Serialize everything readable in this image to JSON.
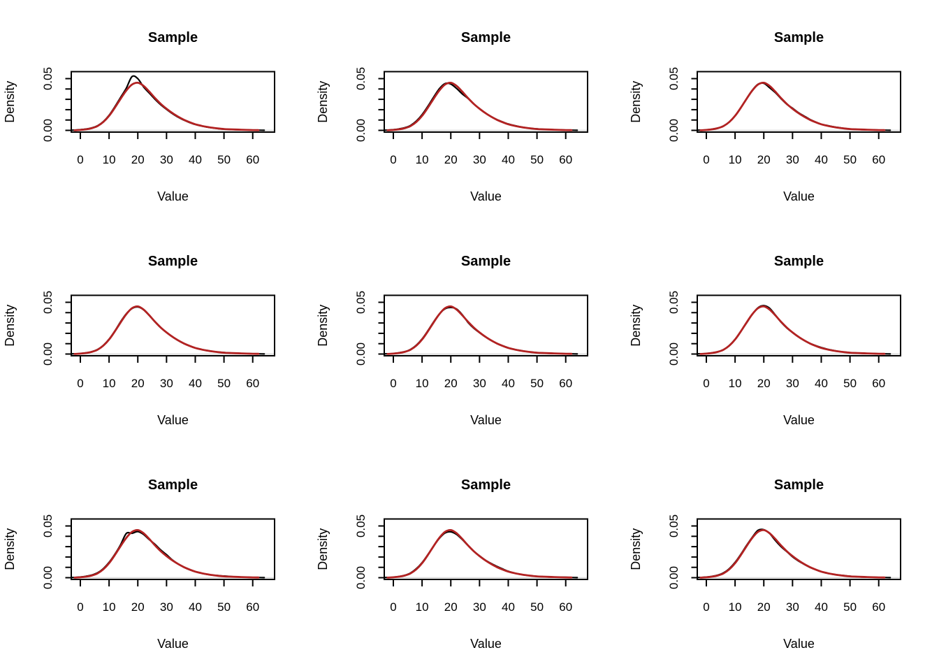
{
  "figure": {
    "background": "#FFFFFF",
    "grid_rows": 3,
    "grid_cols": 3,
    "panel_count": 9
  },
  "colors": {
    "sample_density": "#000000",
    "fitted_density": "#B22222",
    "zero_line": "#D6D6D6",
    "axis": "#000000"
  },
  "chart_data": {
    "type": "line",
    "layout": "3x3 grid of density plots, no legend, no grid lines, boxed plot region",
    "panel_title": "Sample",
    "xlabel": "Value",
    "ylabel": "Density",
    "x_ticks": [
      0,
      10,
      20,
      30,
      40,
      50,
      60
    ],
    "y_ticks": [
      0.0,
      0.01,
      0.02,
      0.03,
      0.04,
      0.05
    ],
    "y_tick_labels_shown": [
      "0.00",
      "0.05"
    ],
    "xlim": [
      -3.1,
      67.7
    ],
    "ylim": [
      -0.0017,
      0.0568
    ],
    "series_names": [
      "sample-kde-black",
      "fitted-curve-red"
    ],
    "x_grid": [
      -4,
      -2,
      0,
      2,
      4,
      6,
      8,
      10,
      12,
      14,
      16,
      18,
      20,
      22,
      24,
      26,
      28,
      30,
      32,
      34,
      36,
      38,
      40,
      42,
      44,
      46,
      48,
      50,
      52,
      54,
      56,
      58,
      60,
      62,
      64
    ],
    "panels": [
      {
        "kde": [
          0.0001,
          0.0003,
          0.0007,
          0.0013,
          0.0024,
          0.0045,
          0.0085,
          0.0146,
          0.0228,
          0.0318,
          0.0408,
          0.052,
          0.05,
          0.042,
          0.036,
          0.03,
          0.0247,
          0.0203,
          0.0162,
          0.0128,
          0.0099,
          0.0076,
          0.0057,
          0.0043,
          0.0032,
          0.0024,
          0.0017,
          0.0012,
          0.0009,
          0.0007,
          0.0005,
          0.0004,
          0.0003,
          0.0002,
          0.0001
        ],
        "fitted": [
          null,
          0.0001,
          0.0004,
          0.001,
          0.0021,
          0.0042,
          0.0081,
          0.014,
          0.0218,
          0.0305,
          0.0385,
          0.0443,
          0.046,
          0.043,
          0.0374,
          0.0312,
          0.0256,
          0.0209,
          0.0168,
          0.0133,
          0.0103,
          0.0079,
          0.0059,
          0.0045,
          0.0034,
          0.0025,
          0.0018,
          0.0013,
          0.001,
          0.0008,
          0.0006,
          0.0004,
          0.0003,
          0.0002,
          null
        ]
      },
      {
        "kde": [
          0.0001,
          0.0003,
          0.0007,
          0.0014,
          0.0026,
          0.0048,
          0.009,
          0.0152,
          0.0232,
          0.032,
          0.0402,
          0.0452,
          0.0448,
          0.0405,
          0.0352,
          0.0308,
          0.0255,
          0.021,
          0.0169,
          0.0134,
          0.0105,
          0.0082,
          0.0062,
          0.0047,
          0.0035,
          0.0026,
          0.0019,
          0.0014,
          0.001,
          0.0008,
          0.0006,
          0.0004,
          0.0003,
          0.0002,
          0.0001
        ],
        "fitted": [
          null,
          0.0001,
          0.0004,
          0.001,
          0.0021,
          0.0042,
          0.0081,
          0.014,
          0.0218,
          0.0305,
          0.0385,
          0.0443,
          0.046,
          0.043,
          0.0374,
          0.0312,
          0.0256,
          0.0209,
          0.0168,
          0.0133,
          0.0103,
          0.0079,
          0.0059,
          0.0045,
          0.0034,
          0.0025,
          0.0018,
          0.0013,
          0.001,
          0.0008,
          0.0006,
          0.0004,
          0.0003,
          0.0002,
          null
        ]
      },
      {
        "kde": [
          0.0001,
          0.0002,
          0.0005,
          0.0011,
          0.0022,
          0.0043,
          0.0082,
          0.0141,
          0.0219,
          0.0306,
          0.0388,
          0.0446,
          0.0455,
          0.0412,
          0.0365,
          0.0306,
          0.0253,
          0.0214,
          0.0172,
          0.0139,
          0.0107,
          0.0081,
          0.0059,
          0.0047,
          0.0036,
          0.0027,
          0.0019,
          0.0013,
          0.001,
          0.0007,
          0.0005,
          0.0004,
          0.0003,
          0.0002,
          0.0001
        ],
        "fitted": [
          null,
          0.0001,
          0.0004,
          0.001,
          0.0021,
          0.0042,
          0.0081,
          0.014,
          0.0218,
          0.0305,
          0.0385,
          0.0443,
          0.046,
          0.043,
          0.0374,
          0.0312,
          0.0256,
          0.0209,
          0.0168,
          0.0133,
          0.0103,
          0.0079,
          0.0059,
          0.0045,
          0.0034,
          0.0025,
          0.0018,
          0.0013,
          0.001,
          0.0008,
          0.0006,
          0.0004,
          0.0003,
          0.0002,
          null
        ]
      },
      {
        "kde": [
          0.0001,
          0.0002,
          0.0005,
          0.0011,
          0.0022,
          0.0044,
          0.0084,
          0.0144,
          0.0222,
          0.0312,
          0.039,
          0.044,
          0.0455,
          0.0428,
          0.0372,
          0.031,
          0.0254,
          0.0208,
          0.0167,
          0.0132,
          0.0102,
          0.0078,
          0.0059,
          0.0045,
          0.0035,
          0.0026,
          0.0019,
          0.0014,
          0.001,
          0.0008,
          0.0006,
          0.0004,
          0.0003,
          0.0002,
          0.0001
        ],
        "fitted": [
          null,
          0.0001,
          0.0004,
          0.001,
          0.0021,
          0.0042,
          0.0081,
          0.014,
          0.0218,
          0.0305,
          0.0385,
          0.0443,
          0.046,
          0.043,
          0.0374,
          0.0312,
          0.0256,
          0.0209,
          0.0168,
          0.0133,
          0.0103,
          0.0079,
          0.0059,
          0.0045,
          0.0034,
          0.0025,
          0.0018,
          0.0013,
          0.001,
          0.0008,
          0.0006,
          0.0004,
          0.0003,
          0.0002,
          null
        ]
      },
      {
        "kde": [
          0.0001,
          0.0002,
          0.0005,
          0.0012,
          0.0023,
          0.0045,
          0.0086,
          0.0146,
          0.0224,
          0.031,
          0.0386,
          0.0437,
          0.045,
          0.0435,
          0.038,
          0.0305,
          0.0249,
          0.0206,
          0.0166,
          0.0131,
          0.0103,
          0.008,
          0.0061,
          0.0046,
          0.0035,
          0.0026,
          0.0019,
          0.0013,
          0.001,
          0.0007,
          0.0005,
          0.0004,
          0.0003,
          0.0002,
          0.0001
        ],
        "fitted": [
          null,
          0.0001,
          0.0004,
          0.001,
          0.0021,
          0.0042,
          0.0081,
          0.014,
          0.0218,
          0.0305,
          0.0385,
          0.0443,
          0.046,
          0.043,
          0.0374,
          0.0312,
          0.0256,
          0.0209,
          0.0168,
          0.0133,
          0.0103,
          0.0079,
          0.0059,
          0.0045,
          0.0034,
          0.0025,
          0.0018,
          0.0013,
          0.001,
          0.0008,
          0.0006,
          0.0004,
          0.0003,
          0.0002,
          null
        ]
      },
      {
        "kde": [
          0.0001,
          0.0002,
          0.0005,
          0.0011,
          0.0022,
          0.0043,
          0.0083,
          0.0142,
          0.0219,
          0.0301,
          0.0384,
          0.0448,
          0.0468,
          0.0443,
          0.0378,
          0.0308,
          0.0252,
          0.0207,
          0.0166,
          0.0132,
          0.0103,
          0.0082,
          0.0063,
          0.0048,
          0.0036,
          0.0026,
          0.0019,
          0.0013,
          0.001,
          0.0007,
          0.0005,
          0.0004,
          0.0003,
          0.0002,
          0.0001
        ],
        "fitted": [
          null,
          0.0001,
          0.0004,
          0.001,
          0.0021,
          0.0042,
          0.0081,
          0.014,
          0.0218,
          0.0305,
          0.0385,
          0.0443,
          0.046,
          0.043,
          0.0374,
          0.0312,
          0.0256,
          0.0209,
          0.0168,
          0.0133,
          0.0103,
          0.0079,
          0.0059,
          0.0045,
          0.0034,
          0.0025,
          0.0018,
          0.0013,
          0.001,
          0.0008,
          0.0006,
          0.0004,
          0.0003,
          0.0002,
          null
        ]
      },
      {
        "kde": [
          0.0001,
          0.0003,
          0.0007,
          0.0014,
          0.0026,
          0.0047,
          0.0088,
          0.0148,
          0.0226,
          0.0318,
          0.0428,
          0.0429,
          0.0446,
          0.0418,
          0.0368,
          0.0322,
          0.0268,
          0.0222,
          0.0172,
          0.0134,
          0.0102,
          0.0077,
          0.0058,
          0.0044,
          0.0033,
          0.0025,
          0.002,
          0.0016,
          0.0012,
          0.0008,
          0.0005,
          0.0004,
          0.0003,
          0.0002,
          0.0001
        ],
        "fitted": [
          null,
          0.0001,
          0.0004,
          0.001,
          0.0021,
          0.0042,
          0.0081,
          0.014,
          0.0218,
          0.0305,
          0.0385,
          0.0443,
          0.046,
          0.043,
          0.0374,
          0.0312,
          0.0256,
          0.0209,
          0.0168,
          0.0133,
          0.0103,
          0.0079,
          0.0059,
          0.0045,
          0.0034,
          0.0025,
          0.0018,
          0.0013,
          0.001,
          0.0008,
          0.0006,
          0.0004,
          0.0003,
          0.0002,
          null
        ]
      },
      {
        "kde": [
          0.0001,
          0.0002,
          0.0005,
          0.0011,
          0.0023,
          0.0046,
          0.0087,
          0.0146,
          0.0222,
          0.0305,
          0.038,
          0.0432,
          0.0443,
          0.0418,
          0.0368,
          0.031,
          0.0256,
          0.0211,
          0.017,
          0.0138,
          0.011,
          0.0085,
          0.0062,
          0.0046,
          0.0034,
          0.0025,
          0.0018,
          0.0013,
          0.001,
          0.0007,
          0.0006,
          0.0005,
          0.0004,
          0.0002,
          0.0001
        ],
        "fitted": [
          null,
          0.0001,
          0.0004,
          0.001,
          0.0021,
          0.0042,
          0.0081,
          0.014,
          0.0218,
          0.0305,
          0.0385,
          0.0443,
          0.046,
          0.043,
          0.0374,
          0.0312,
          0.0256,
          0.0209,
          0.0168,
          0.0133,
          0.0103,
          0.0079,
          0.0059,
          0.0045,
          0.0034,
          0.0025,
          0.0018,
          0.0013,
          0.001,
          0.0008,
          0.0006,
          0.0004,
          0.0003,
          0.0002,
          null
        ]
      },
      {
        "kde": [
          0.0001,
          0.0003,
          0.0006,
          0.0013,
          0.0025,
          0.0047,
          0.0088,
          0.0148,
          0.0226,
          0.0312,
          0.0392,
          0.0458,
          0.0464,
          0.0428,
          0.036,
          0.03,
          0.0252,
          0.0202,
          0.0163,
          0.013,
          0.0101,
          0.0078,
          0.0058,
          0.0044,
          0.0034,
          0.0026,
          0.002,
          0.0014,
          0.001,
          0.0007,
          0.0005,
          0.0004,
          0.0003,
          0.0002,
          0.0001
        ],
        "fitted": [
          null,
          0.0001,
          0.0004,
          0.001,
          0.0021,
          0.0042,
          0.0081,
          0.014,
          0.0218,
          0.0305,
          0.0385,
          0.0443,
          0.046,
          0.043,
          0.0374,
          0.0312,
          0.0256,
          0.0209,
          0.0168,
          0.0133,
          0.0103,
          0.0079,
          0.0059,
          0.0045,
          0.0034,
          0.0025,
          0.0018,
          0.0013,
          0.001,
          0.0008,
          0.0006,
          0.0004,
          0.0003,
          0.0002,
          null
        ]
      }
    ]
  }
}
